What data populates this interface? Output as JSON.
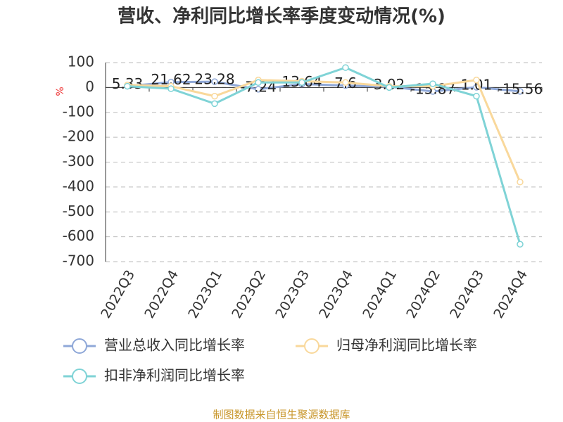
{
  "chart_data": {
    "type": "line",
    "title": "营收、净利同比增长率季度变动情况(%)",
    "y_label": "%",
    "categories": [
      "2022Q3",
      "2022Q4",
      "2023Q1",
      "2023Q2",
      "2023Q3",
      "2023Q4",
      "2024Q1",
      "2024Q2",
      "2024Q3",
      "2024Q4"
    ],
    "series": [
      {
        "name": "营业总收入同比增长率",
        "color": "#8fa8d8",
        "values": [
          5.33,
          21.62,
          23.28,
          -7.24,
          13.64,
          7.6,
          3.02,
          -15.87,
          1.01,
          -15.56
        ],
        "labels": true
      },
      {
        "name": "归母净利润同比增长率",
        "color": "#f9d89b",
        "values": [
          10,
          5,
          -35,
          30,
          25,
          20,
          5,
          5,
          30,
          -380
        ]
      },
      {
        "name": "扣非净利润同比增长率",
        "color": "#7fd3d6",
        "values": [
          5,
          -5,
          -65,
          20,
          20,
          80,
          0,
          15,
          -35,
          -630
        ]
      }
    ],
    "ylim": [
      -700,
      100
    ],
    "yticks": [
      100,
      0,
      -100,
      -200,
      -300,
      -400,
      -500,
      -600,
      -700
    ],
    "grid": true,
    "source": "制图数据来自恒生聚源数据库"
  }
}
